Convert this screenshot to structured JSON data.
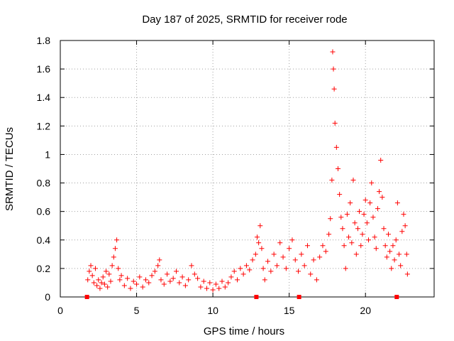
{
  "chart_data": {
    "type": "scatter",
    "title": "Day 187 of 2025, SRMTID for receiver rode",
    "xlabel": "GPS time / hours",
    "ylabel": "SRMTID / TECUs",
    "xlim": [
      0,
      24.5
    ],
    "ylim": [
      0,
      1.8
    ],
    "xticks": [
      0,
      5,
      10,
      15,
      20
    ],
    "xtick_labels": [
      "0",
      "5",
      "10",
      "15",
      "20"
    ],
    "yticks": [
      0,
      0.2,
      0.4,
      0.6,
      0.8,
      1.0,
      1.2,
      1.4,
      1.6,
      1.8
    ],
    "ytick_labels": [
      "0",
      "0.2",
      "0.4",
      "0.6",
      "0.8",
      "1",
      "1.2",
      "1.4",
      "1.6",
      "1.8"
    ],
    "grid": true,
    "marker": "+",
    "color": "#ff0000",
    "series": [
      {
        "name": "SRMTID",
        "points": [
          [
            1.8,
            0.12
          ],
          [
            1.9,
            0.18
          ],
          [
            2.0,
            0.22
          ],
          [
            2.1,
            0.15
          ],
          [
            2.2,
            0.1
          ],
          [
            2.3,
            0.2
          ],
          [
            2.4,
            0.08
          ],
          [
            2.5,
            0.12
          ],
          [
            2.6,
            0.06
          ],
          [
            2.7,
            0.1
          ],
          [
            2.8,
            0.14
          ],
          [
            2.9,
            0.09
          ],
          [
            3.0,
            0.18
          ],
          [
            3.1,
            0.07
          ],
          [
            3.2,
            0.16
          ],
          [
            3.3,
            0.11
          ],
          [
            3.4,
            0.22
          ],
          [
            3.5,
            0.28
          ],
          [
            3.6,
            0.34
          ],
          [
            3.7,
            0.4
          ],
          [
            3.8,
            0.2
          ],
          [
            3.9,
            0.12
          ],
          [
            4.0,
            0.15
          ],
          [
            4.2,
            0.08
          ],
          [
            4.4,
            0.13
          ],
          [
            4.6,
            0.06
          ],
          [
            4.8,
            0.11
          ],
          [
            5.0,
            0.09
          ],
          [
            5.2,
            0.14
          ],
          [
            5.4,
            0.07
          ],
          [
            5.6,
            0.12
          ],
          [
            5.8,
            0.1
          ],
          [
            6.0,
            0.15
          ],
          [
            6.2,
            0.18
          ],
          [
            6.4,
            0.22
          ],
          [
            6.5,
            0.26
          ],
          [
            6.6,
            0.12
          ],
          [
            6.8,
            0.09
          ],
          [
            7.0,
            0.16
          ],
          [
            7.2,
            0.11
          ],
          [
            7.4,
            0.13
          ],
          [
            7.6,
            0.18
          ],
          [
            7.8,
            0.1
          ],
          [
            8.0,
            0.14
          ],
          [
            8.2,
            0.08
          ],
          [
            8.4,
            0.12
          ],
          [
            8.6,
            0.22
          ],
          [
            8.8,
            0.16
          ],
          [
            9.0,
            0.13
          ],
          [
            9.2,
            0.07
          ],
          [
            9.4,
            0.11
          ],
          [
            9.6,
            0.06
          ],
          [
            9.8,
            0.1
          ],
          [
            10.0,
            0.05
          ],
          [
            10.2,
            0.09
          ],
          [
            10.4,
            0.06
          ],
          [
            10.6,
            0.11
          ],
          [
            10.8,
            0.07
          ],
          [
            11.0,
            0.1
          ],
          [
            11.2,
            0.14
          ],
          [
            11.4,
            0.18
          ],
          [
            11.6,
            0.12
          ],
          [
            11.8,
            0.2
          ],
          [
            12.0,
            0.16
          ],
          [
            12.2,
            0.22
          ],
          [
            12.4,
            0.19
          ],
          [
            12.6,
            0.26
          ],
          [
            12.8,
            0.3
          ],
          [
            12.9,
            0.42
          ],
          [
            13.0,
            0.38
          ],
          [
            13.1,
            0.5
          ],
          [
            13.2,
            0.34
          ],
          [
            13.3,
            0.2
          ],
          [
            13.4,
            0.12
          ],
          [
            13.6,
            0.25
          ],
          [
            13.8,
            0.18
          ],
          [
            14.0,
            0.3
          ],
          [
            14.2,
            0.22
          ],
          [
            14.4,
            0.38
          ],
          [
            14.6,
            0.28
          ],
          [
            14.8,
            0.2
          ],
          [
            15.0,
            0.34
          ],
          [
            15.2,
            0.4
          ],
          [
            15.4,
            0.26
          ],
          [
            15.6,
            0.18
          ],
          [
            15.8,
            0.3
          ],
          [
            16.0,
            0.22
          ],
          [
            16.2,
            0.36
          ],
          [
            16.4,
            0.16
          ],
          [
            16.6,
            0.26
          ],
          [
            16.8,
            0.12
          ],
          [
            17.0,
            0.28
          ],
          [
            17.2,
            0.36
          ],
          [
            17.4,
            0.32
          ],
          [
            17.6,
            0.44
          ],
          [
            17.7,
            0.55
          ],
          [
            17.8,
            0.82
          ],
          [
            17.85,
            1.72
          ],
          [
            17.9,
            1.6
          ],
          [
            17.95,
            1.46
          ],
          [
            18.0,
            1.22
          ],
          [
            18.1,
            1.05
          ],
          [
            18.2,
            0.9
          ],
          [
            18.3,
            0.72
          ],
          [
            18.4,
            0.56
          ],
          [
            18.5,
            0.48
          ],
          [
            18.6,
            0.36
          ],
          [
            18.7,
            0.2
          ],
          [
            18.8,
            0.58
          ],
          [
            18.9,
            0.42
          ],
          [
            19.0,
            0.66
          ],
          [
            19.1,
            0.38
          ],
          [
            19.2,
            0.82
          ],
          [
            19.3,
            0.52
          ],
          [
            19.4,
            0.3
          ],
          [
            19.5,
            0.48
          ],
          [
            19.6,
            0.6
          ],
          [
            19.7,
            0.36
          ],
          [
            19.8,
            0.44
          ],
          [
            19.9,
            0.58
          ],
          [
            20.0,
            0.68
          ],
          [
            20.1,
            0.52
          ],
          [
            20.2,
            0.4
          ],
          [
            20.3,
            0.66
          ],
          [
            20.4,
            0.8
          ],
          [
            20.5,
            0.56
          ],
          [
            20.6,
            0.42
          ],
          [
            20.7,
            0.34
          ],
          [
            20.8,
            0.62
          ],
          [
            20.9,
            0.74
          ],
          [
            21.0,
            0.96
          ],
          [
            21.1,
            0.7
          ],
          [
            21.2,
            0.48
          ],
          [
            21.3,
            0.36
          ],
          [
            21.4,
            0.28
          ],
          [
            21.5,
            0.44
          ],
          [
            21.6,
            0.32
          ],
          [
            21.7,
            0.2
          ],
          [
            21.8,
            0.36
          ],
          [
            21.9,
            0.26
          ],
          [
            22.0,
            0.4
          ],
          [
            22.1,
            0.66
          ],
          [
            22.2,
            0.3
          ],
          [
            22.3,
            0.22
          ],
          [
            22.4,
            0.46
          ],
          [
            22.5,
            0.58
          ],
          [
            22.6,
            0.5
          ],
          [
            22.7,
            0.3
          ],
          [
            22.75,
            0.16
          ]
        ]
      }
    ],
    "zero_markers_x": [
      1.75,
      12.85,
      15.65,
      22.05
    ]
  }
}
